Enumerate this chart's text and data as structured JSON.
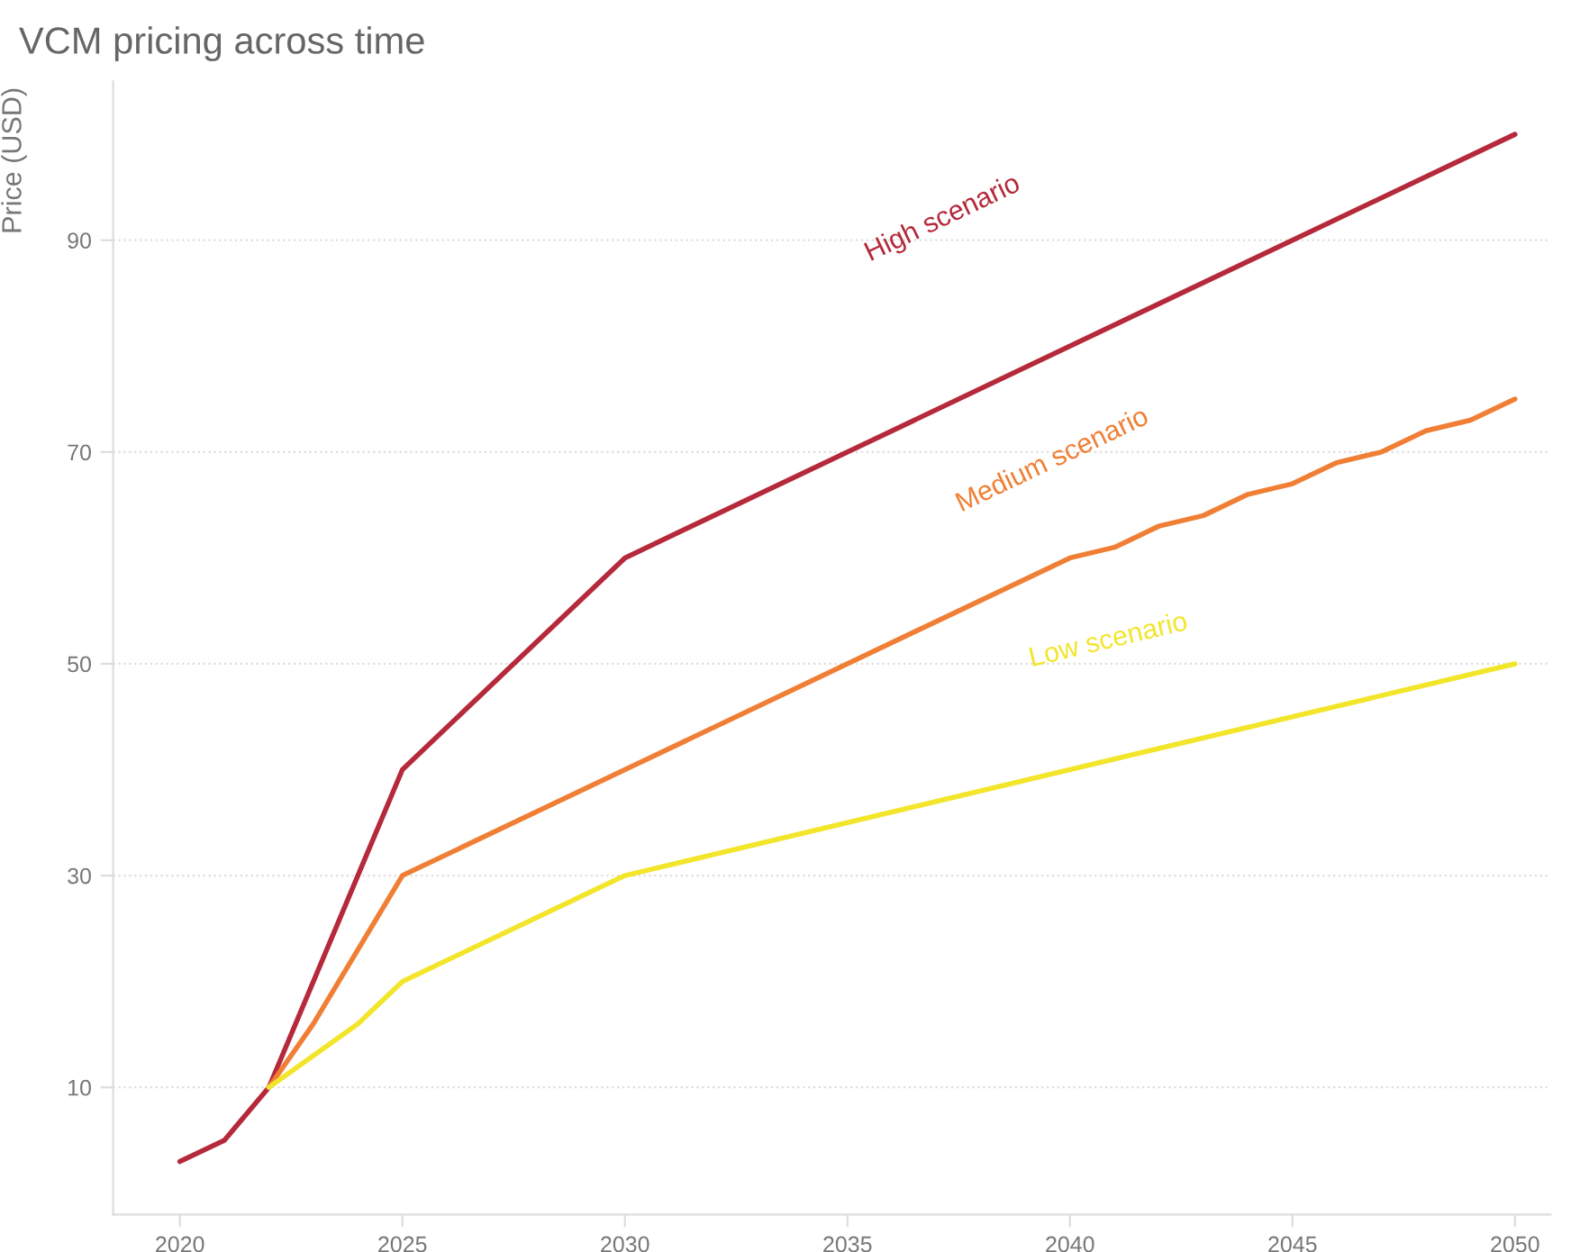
{
  "chart_data": {
    "type": "line",
    "title": "VCM pricing across time",
    "ylabel": "Price (USD)",
    "series": [
      {
        "name": "High scenario",
        "color": "#b5293a",
        "x": [
          2020,
          2021,
          2022,
          2025,
          2030,
          2050
        ],
        "values": [
          3,
          5,
          10,
          40,
          60,
          100
        ]
      },
      {
        "name": "Medium scenario",
        "color": "#f07f35",
        "x": [
          2022,
          2023,
          2025,
          2030,
          2040,
          2041,
          2042,
          2043,
          2044,
          2045,
          2046,
          2047,
          2048,
          2049,
          2050
        ],
        "values": [
          10,
          16,
          30,
          40,
          60,
          61,
          63,
          64,
          66,
          67,
          69,
          70,
          72,
          73,
          75
        ]
      },
      {
        "name": "Low scenario",
        "color": "#f2e52a",
        "x": [
          2022,
          2023,
          2024,
          2025,
          2030,
          2050
        ],
        "values": [
          10,
          13,
          16,
          20,
          30,
          50
        ]
      }
    ],
    "xlim": [
      2018.5,
      2050.8
    ],
    "ylim": [
      -2,
      105
    ],
    "xticks": [
      2020,
      2025,
      2030,
      2035,
      2040,
      2045,
      2050
    ],
    "yticks": [
      10,
      30,
      50,
      70,
      90
    ],
    "grid": "y",
    "legend": false,
    "marker": "none",
    "line_style": "solid"
  }
}
